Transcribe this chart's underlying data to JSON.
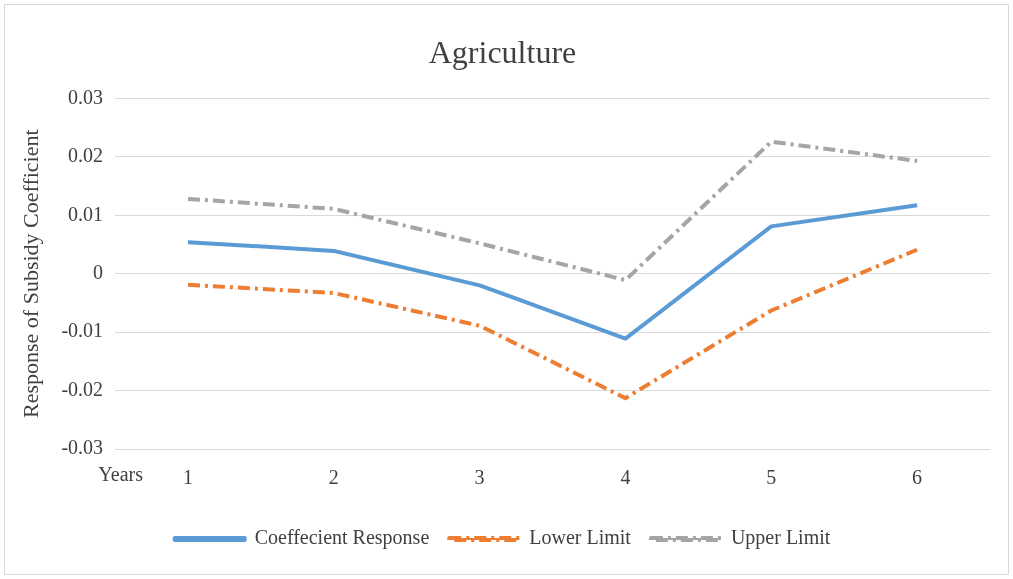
{
  "chart_data": {
    "type": "line",
    "title": "Agriculture",
    "xlabel": "Years",
    "ylabel": "Response of Subsidy Coefficient",
    "categories": [
      "1",
      "2",
      "3",
      "4",
      "5",
      "6"
    ],
    "series": [
      {
        "name": "Coeffecient Response",
        "color": "#5b9bd5",
        "line_style": "solid",
        "values": [
          0.0054,
          0.0039,
          -0.002,
          -0.0111,
          0.0081,
          0.0117
        ]
      },
      {
        "name": "Lower Limit",
        "color": "#ed7d31",
        "line_style": "dashed",
        "values": [
          -0.0019,
          -0.0033,
          -0.0089,
          -0.0213,
          -0.0063,
          0.0041
        ]
      },
      {
        "name": "Upper Limit",
        "color": "#a5a5a5",
        "line_style": "dashed",
        "values": [
          0.0128,
          0.0111,
          0.0052,
          -0.0011,
          0.0226,
          0.0193
        ]
      }
    ],
    "ylim": [
      -0.03,
      0.03
    ],
    "yticks": [
      -0.03,
      -0.02,
      -0.01,
      0,
      0.01,
      0.02,
      0.03
    ],
    "grid": "y",
    "legend": "bottom",
    "marker": "none"
  }
}
